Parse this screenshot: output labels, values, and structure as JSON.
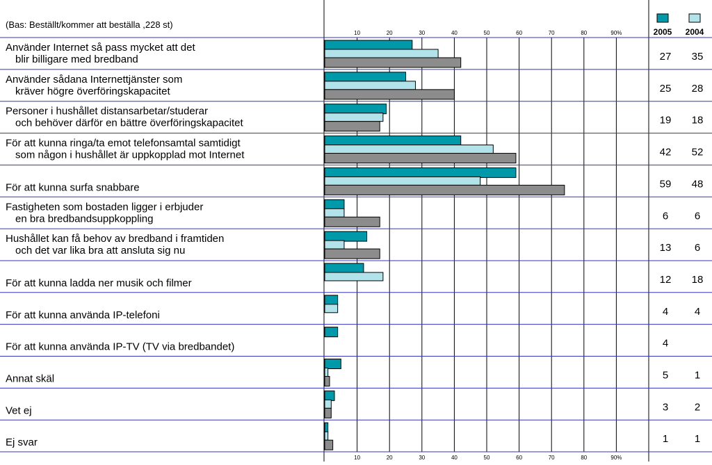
{
  "chart_data": {
    "type": "bar",
    "orientation": "horizontal",
    "subtitle": "(Bas: Beställt/kommer att beställa ,228 st)",
    "categories": [
      [
        "Använder Internet så pass mycket att det",
        "blir billigare med bredband"
      ],
      [
        "Använder sådana Internettjänster som",
        "kräver högre överföringskapacitet"
      ],
      [
        "Personer i hushållet distansarbetar/studerar",
        "och behöver därför en bättre överföringskapacitet"
      ],
      [
        "För att kunna ringa/ta emot telefonsamtal samtidigt",
        "som någon i hushållet är uppkopplad mot Internet"
      ],
      [
        "För att kunna surfa snabbare"
      ],
      [
        "Fastigheten som bostaden ligger i erbjuder",
        "en bra bredbandsuppkoppling"
      ],
      [
        "Hushållet kan få behov av bredband i framtiden",
        "och det var lika bra att ansluta sig nu"
      ],
      [
        "För att kunna ladda ner musik och filmer"
      ],
      [
        "För att kunna använda IP-telefoni"
      ],
      [
        "För att kunna använda IP-TV (TV via bredbandet)"
      ],
      [
        "Annat skäl"
      ],
      [
        "Vet ej"
      ],
      [
        "Ej svar"
      ]
    ],
    "series": [
      {
        "name": "2005",
        "color": "#0099aa",
        "values": [
          27,
          25,
          19,
          42,
          59,
          6,
          13,
          12,
          4,
          4,
          5,
          3,
          1
        ]
      },
      {
        "name": "2004",
        "color": "#b3e3ea",
        "values": [
          35,
          28,
          18,
          52,
          48,
          6,
          6,
          18,
          4,
          null,
          1,
          2,
          1
        ]
      },
      {
        "color": "#8c8c8c",
        "values": [
          42,
          40,
          17,
          59,
          74,
          17,
          17,
          null,
          null,
          null,
          1.5,
          2,
          2.5
        ]
      }
    ],
    "xlim": [
      0,
      100
    ],
    "xticks": [
      10,
      20,
      30,
      40,
      50,
      60,
      70,
      80,
      {
        "value": 90,
        "label": "90%"
      }
    ],
    "grid": true
  }
}
